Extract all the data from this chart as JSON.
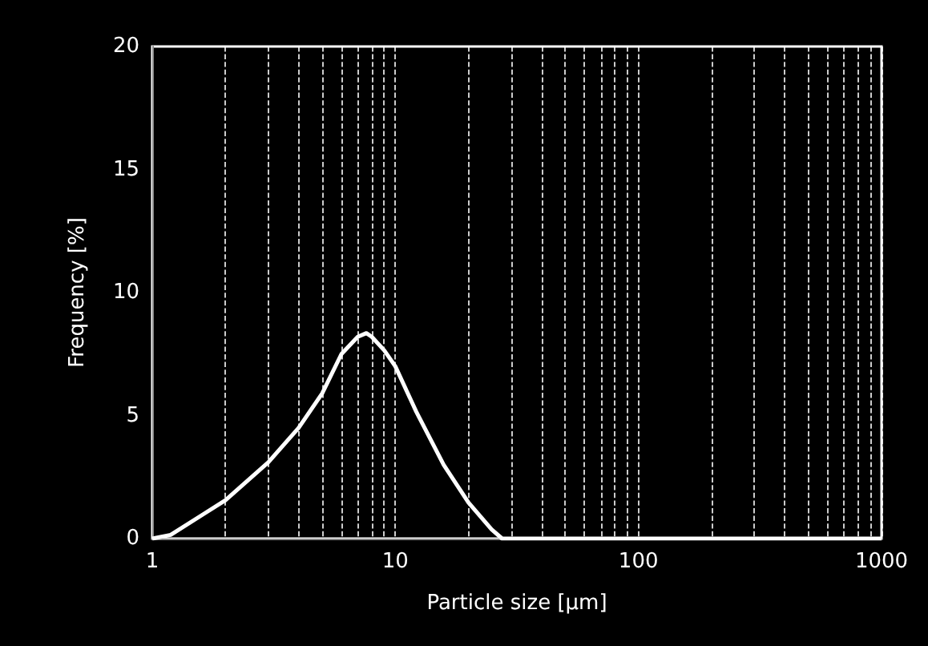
{
  "chart_data": {
    "type": "line",
    "xlabel": "Particle size [µm]",
    "ylabel": "Frequency [%]",
    "log": "x",
    "grid": "x",
    "marker": "none",
    "line_style": "solid",
    "x": [
      1,
      1.19,
      2,
      3,
      4,
      5,
      6,
      7,
      7.6,
      8,
      9,
      10,
      12.2,
      15.8,
      20,
      24.9,
      27.5,
      40,
      100,
      1000
    ],
    "series": [
      {
        "color": "#ffffff",
        "values": [
          0,
          0.15,
          1.56,
          3.1,
          4.5,
          5.9,
          7.5,
          8.2,
          8.35,
          8.2,
          7.65,
          7.0,
          5.15,
          3.0,
          1.46,
          0.37,
          0,
          0,
          0,
          0
        ]
      }
    ],
    "xlim": [
      1,
      1000
    ],
    "xticks": [
      1,
      10,
      100,
      1000
    ],
    "ylim": [
      0,
      20
    ],
    "yticks": [
      0,
      5,
      10,
      15,
      20
    ]
  }
}
